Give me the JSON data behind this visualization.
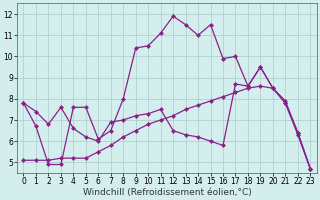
{
  "xlabel": "Windchill (Refroidissement éolien,°C)",
  "background_color": "#d4eeee",
  "line_color": "#882288",
  "grid_color": "#aacccc",
  "xlim": [
    -0.5,
    23.5
  ],
  "ylim": [
    4.5,
    12.5
  ],
  "xticks": [
    0,
    1,
    2,
    3,
    4,
    5,
    6,
    7,
    8,
    9,
    10,
    11,
    12,
    13,
    14,
    15,
    16,
    17,
    18,
    19,
    20,
    21,
    22,
    23
  ],
  "yticks": [
    5,
    6,
    7,
    8,
    9,
    10,
    11,
    12
  ],
  "line1_x": [
    0,
    1,
    2,
    3,
    4,
    5,
    6,
    7,
    8,
    9,
    10,
    11,
    12,
    13,
    14,
    15,
    16,
    17,
    18,
    19,
    20,
    21,
    22,
    23
  ],
  "line1_y": [
    7.8,
    6.7,
    4.9,
    4.9,
    7.6,
    7.6,
    6.1,
    6.5,
    8.0,
    10.4,
    10.5,
    11.1,
    11.9,
    11.5,
    11.0,
    11.5,
    9.9,
    10.0,
    8.6,
    9.5,
    8.5,
    7.8,
    6.4,
    4.7
  ],
  "line2_x": [
    0,
    1,
    2,
    3,
    4,
    5,
    6,
    7,
    8,
    9,
    10,
    11,
    12,
    13,
    14,
    15,
    16,
    17,
    18,
    19,
    20,
    21,
    22,
    23
  ],
  "line2_y": [
    5.1,
    5.1,
    5.1,
    5.2,
    5.2,
    5.2,
    5.5,
    5.8,
    6.2,
    6.5,
    6.8,
    7.0,
    7.2,
    7.5,
    7.7,
    7.9,
    8.1,
    8.3,
    8.5,
    8.6,
    8.5,
    7.9,
    6.4,
    4.7
  ],
  "line3_x": [
    0,
    1,
    2,
    3,
    4,
    5,
    6,
    7,
    8,
    9,
    10,
    11,
    12,
    13,
    14,
    15,
    16,
    17,
    18,
    19,
    20,
    21,
    22,
    23
  ],
  "line3_y": [
    7.8,
    7.4,
    6.8,
    7.6,
    6.6,
    6.2,
    6.0,
    6.9,
    7.0,
    7.2,
    7.3,
    7.5,
    6.5,
    6.3,
    6.2,
    6.0,
    5.8,
    8.7,
    8.6,
    9.5,
    8.5,
    7.8,
    6.3,
    4.7
  ],
  "marker": "D",
  "marker_size": 2.5,
  "linewidth": 0.9,
  "tick_fontsize": 5.5,
  "label_fontsize": 6.5
}
